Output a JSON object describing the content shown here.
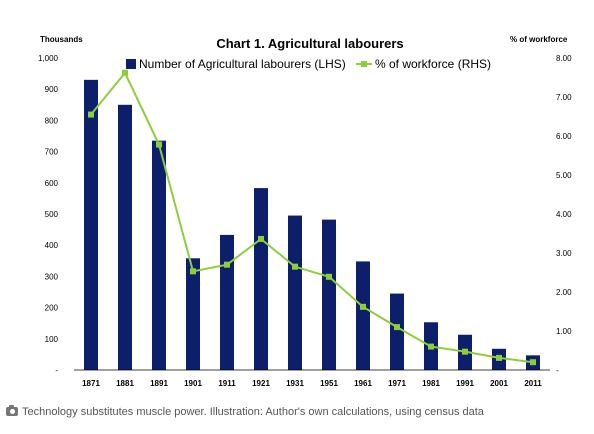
{
  "chart_data": {
    "type": "bar",
    "title": "Chart 1. Agricultural labourers",
    "left_axis_label": "Thousands",
    "right_axis_label": "% of workforce",
    "categories": [
      "1871",
      "1881",
      "1891",
      "1901",
      "1911",
      "1921",
      "1931",
      "1951",
      "1961",
      "1971",
      "1981",
      "1991",
      "2001",
      "2011"
    ],
    "series": [
      {
        "name": "Number of Agricultural labourers (LHS)",
        "type": "bar",
        "axis": "left",
        "color": "#0d1f6b",
        "values": [
          930,
          850,
          735,
          358,
          433,
          583,
          495,
          482,
          348,
          245,
          153,
          113,
          68,
          47
        ]
      },
      {
        "name": "% of workforce (RHS)",
        "type": "line",
        "axis": "right",
        "color": "#8ccf3a",
        "values": [
          6.55,
          7.62,
          5.78,
          2.53,
          2.7,
          3.36,
          2.65,
          2.39,
          1.62,
          1.1,
          0.6,
          0.47,
          0.31,
          0.2
        ]
      }
    ],
    "left_ticks": [
      "1,000",
      "900",
      "800",
      "700",
      "600",
      "500",
      "400",
      "300",
      "200",
      "100",
      "-"
    ],
    "right_ticks": [
      "8.00",
      "7.00",
      "6.00",
      "5.00",
      "4.00",
      "3.00",
      "2.00",
      "1.00",
      "-"
    ],
    "ylim_left": [
      0,
      1000
    ],
    "ylim_right": [
      0,
      8
    ],
    "grid": false,
    "legend": "top"
  },
  "caption": {
    "icon": "camera-icon",
    "text": "Technology substitutes muscle power. Illustration: Author's own calculations, using census data"
  }
}
